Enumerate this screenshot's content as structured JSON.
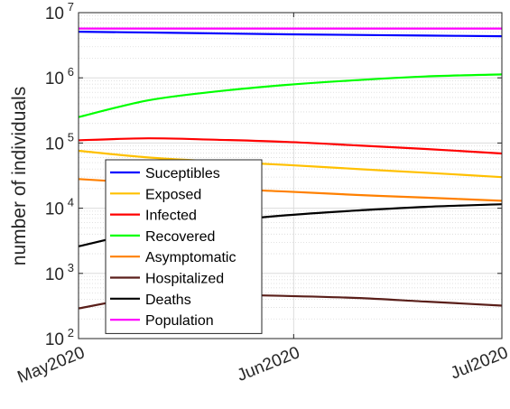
{
  "chart_data": {
    "type": "line",
    "ylabel": "number of individuals",
    "yscale": "log",
    "ylim": [
      100,
      10000000
    ],
    "yticks": [
      {
        "base": "10",
        "exp": "2"
      },
      {
        "base": "10",
        "exp": "3"
      },
      {
        "base": "10",
        "exp": "4"
      },
      {
        "base": "10",
        "exp": "5"
      },
      {
        "base": "10",
        "exp": "6"
      },
      {
        "base": "10",
        "exp": "7"
      }
    ],
    "xticks": [
      "May2020",
      "Jun2020",
      "Jul2020"
    ],
    "x": [
      "2020-05-01",
      "2020-05-11",
      "2020-05-21",
      "2020-05-31",
      "2020-06-10",
      "2020-06-20",
      "2020-07-01"
    ],
    "grid": true,
    "legend_position": "lower-left",
    "series": [
      {
        "name": "Suceptibles",
        "color": "#0000ff",
        "values": [
          5100000,
          4950000,
          4800000,
          4650000,
          4550000,
          4450000,
          4350000
        ]
      },
      {
        "name": "Exposed",
        "color": "#ffc000",
        "values": [
          76000,
          60000,
          52000,
          46000,
          40000,
          35000,
          30000
        ]
      },
      {
        "name": "Infected",
        "color": "#ff0000",
        "values": [
          110000,
          118000,
          112000,
          104000,
          92000,
          81000,
          69000
        ]
      },
      {
        "name": "Recovered",
        "color": "#00ff00",
        "values": [
          250000,
          450000,
          620000,
          780000,
          920000,
          1050000,
          1130000
        ]
      },
      {
        "name": "Asymptomatic",
        "color": "#ff8000",
        "values": [
          28000,
          24000,
          20000,
          18000,
          16000,
          14500,
          13000
        ]
      },
      {
        "name": "Hospitalized",
        "color": "#5a1f1a",
        "values": [
          290,
          440,
          470,
          450,
          420,
          370,
          320
        ]
      },
      {
        "name": "Deaths",
        "color": "#000000",
        "values": [
          2600,
          4500,
          6200,
          7800,
          9200,
          10500,
          11500
        ]
      },
      {
        "name": "Population",
        "color": "#ff00ff",
        "values": [
          5700000,
          5700000,
          5700000,
          5700000,
          5700000,
          5700000,
          5700000
        ]
      }
    ]
  }
}
